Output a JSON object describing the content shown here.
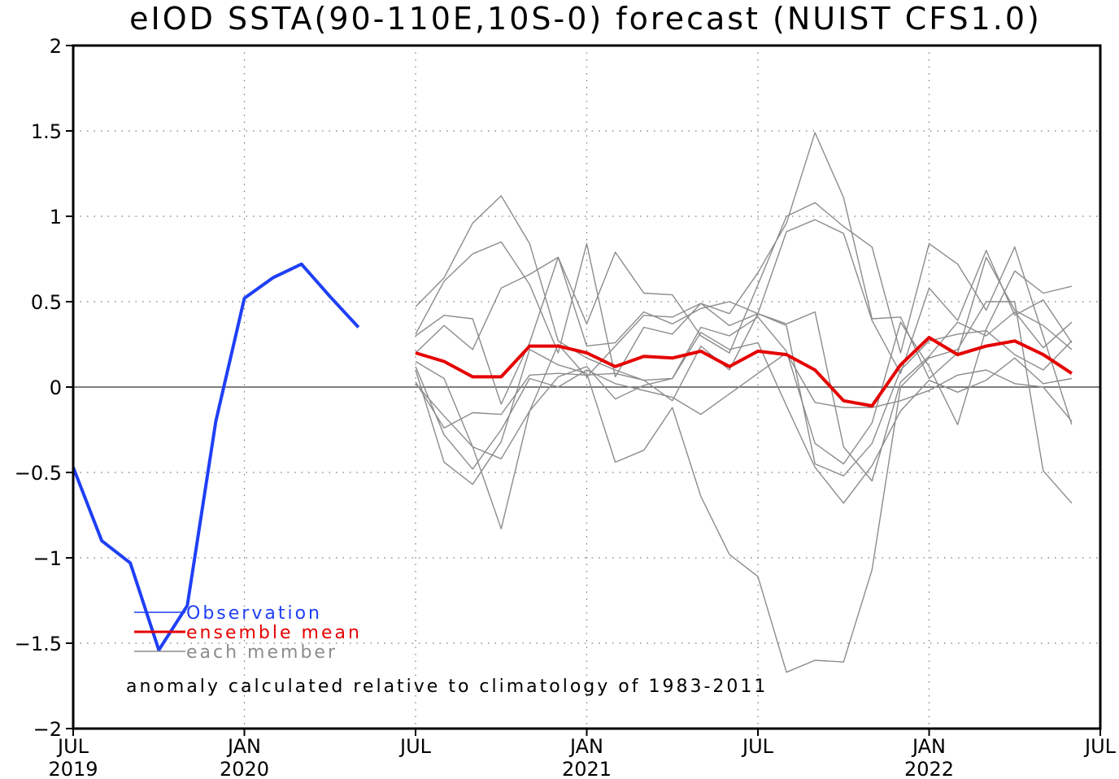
{
  "chart_data": {
    "type": "line",
    "title": "eIOD SSTA(90-110E,10S-0) forecast (NUIST CFS1.0)",
    "xlabel": "",
    "ylabel": "",
    "ylim": [
      -2,
      2
    ],
    "yticks": [
      {
        "value": 2,
        "label": "2"
      },
      {
        "value": 1.5,
        "label": "1.5"
      },
      {
        "value": 1,
        "label": "1"
      },
      {
        "value": 0.5,
        "label": "0.5"
      },
      {
        "value": 0,
        "label": "0"
      },
      {
        "value": -0.5,
        "label": "-0.5"
      },
      {
        "value": -1,
        "label": "-1"
      },
      {
        "value": -1.5,
        "label": "-1.5"
      },
      {
        "value": -2,
        "label": "-2"
      }
    ],
    "x_start": "2019-07",
    "x_end": "2022-07",
    "xticks": [
      {
        "date": "2019-07",
        "month": "JUL",
        "year": "2019"
      },
      {
        "date": "2020-01",
        "month": "JAN",
        "year": "2020"
      },
      {
        "date": "2020-07",
        "month": "JUL",
        "year": ""
      },
      {
        "date": "2021-01",
        "month": "JAN",
        "year": "2021"
      },
      {
        "date": "2021-07",
        "month": "JUL",
        "year": ""
      },
      {
        "date": "2022-01",
        "month": "JAN",
        "year": "2022"
      },
      {
        "date": "2022-07",
        "month": "JUL",
        "year": ""
      }
    ],
    "grid": "dotted",
    "zero_line": true,
    "legend_position": "bottom-left",
    "legend": [
      {
        "label": "Observation",
        "color": "#1f3ff5"
      },
      {
        "label": "ensemble mean",
        "color": "#e50000"
      },
      {
        "label": "each member",
        "color": "#8c8c8c"
      }
    ],
    "annotation": "anomaly calculated relative to climatology of 1983-2011",
    "series": [
      {
        "name": "Observation",
        "color": "#1f3ff5",
        "start": "2019-07",
        "values": [
          -0.47,
          -0.9,
          -1.03,
          -1.54,
          -1.28,
          -0.2,
          0.52,
          0.64,
          0.72,
          0.53,
          0.35
        ]
      },
      {
        "name": "ensemble mean",
        "color": "#e50000",
        "start": "2020-07",
        "values": [
          0.2,
          0.15,
          0.06,
          0.06,
          0.24,
          0.24,
          0.2,
          0.12,
          0.18,
          0.17,
          0.21,
          0.12,
          0.21,
          0.19,
          0.1,
          -0.08,
          -0.11,
          0.13,
          0.29,
          0.19,
          0.24,
          0.27,
          0.19,
          0.08
        ]
      }
    ],
    "members": {
      "name": "each member",
      "color": "#8c8c8c",
      "start": "2020-07",
      "values": [
        [
          0.47,
          0.64,
          0.96,
          1.12,
          0.84,
          0.27,
          0.17,
          0.1,
          0.04,
          0.05,
          0.35,
          0.3,
          0.41,
          0.21,
          -0.33,
          -0.45,
          -0.21,
          0.38,
          0.12,
          -0.22,
          0.34,
          0.68,
          0.55,
          0.59
        ],
        [
          0.31,
          0.62,
          0.78,
          0.85,
          0.6,
          0.2,
          0.84,
          0.06,
          0.35,
          0.31,
          0.49,
          0.43,
          0.67,
          0.96,
          1.49,
          1.11,
          0.4,
          0.41,
          0.05,
          0.2,
          0.76,
          0.45,
          0.36,
          0.22
        ],
        [
          0.3,
          0.42,
          0.4,
          -0.1,
          0.26,
          0.76,
          0.37,
          0.79,
          0.55,
          0.54,
          0.3,
          0.2,
          0.6,
          1.0,
          1.08,
          0.94,
          0.82,
          0.2,
          0.84,
          0.72,
          0.45,
          0.82,
          0.3,
          -0.22
        ],
        [
          0.2,
          0.36,
          0.22,
          0.58,
          0.66,
          0.76,
          0.24,
          0.26,
          0.44,
          0.37,
          0.46,
          0.5,
          0.43,
          0.91,
          0.98,
          0.9,
          0.39,
          0.08,
          0.58,
          0.39,
          0.8,
          0.42,
          0.51,
          0.26
        ],
        [
          0.15,
          0.05,
          -0.35,
          -0.42,
          -0.14,
          0.25,
          0.06,
          0.24,
          0.42,
          0.41,
          0.49,
          0.36,
          0.43,
          0.37,
          0.44,
          -0.35,
          -0.55,
          0.03,
          0.18,
          0.38,
          0.3,
          0.44,
          0.23,
          0.38
        ],
        [
          0.1,
          -0.44,
          -0.57,
          -0.32,
          0.22,
          0.13,
          0.08,
          -0.44,
          -0.37,
          -0.12,
          -0.64,
          -0.98,
          -1.11,
          -1.67,
          -1.6,
          -1.61,
          -1.07,
          0.0,
          0.17,
          0.22,
          0.5,
          0.5,
          -0.49,
          -0.68
        ],
        [
          0.03,
          -0.24,
          -0.15,
          -0.16,
          0.07,
          0.08,
          0.07,
          0.08,
          0.04,
          -0.08,
          0.24,
          0.1,
          0.43,
          0.36,
          -0.45,
          -0.52,
          -0.33,
          0.1,
          0.27,
          0.31,
          0.33,
          0.19,
          0.1,
          0.27
        ],
        [
          0.02,
          -0.17,
          -0.35,
          -0.83,
          -0.14,
          0.06,
          0.12,
          -0.07,
          0.01,
          0.05,
          0.32,
          0.22,
          0.26,
          -0.11,
          -0.47,
          -0.68,
          -0.46,
          -0.14,
          0.04,
          -0.03,
          0.04,
          0.17,
          0.02,
          0.05
        ],
        [
          0.12,
          -0.28,
          -0.48,
          -0.25,
          0.05,
          0.0,
          0.1,
          0.02,
          -0.02,
          -0.06,
          -0.16,
          -0.04,
          0.08,
          0.2,
          -0.09,
          -0.12,
          -0.12,
          -0.08,
          -0.02,
          0.07,
          0.1,
          0.02,
          0.0,
          -0.2
        ]
      ]
    }
  }
}
